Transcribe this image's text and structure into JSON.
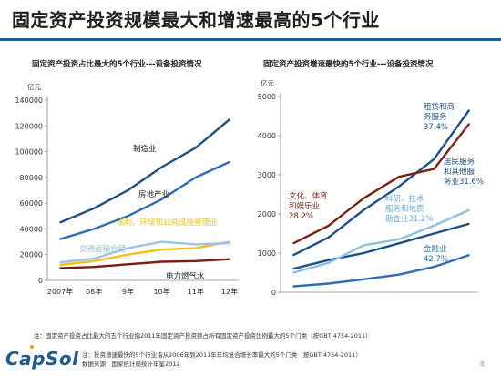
{
  "page": {
    "title": "固定资产投资规模最大和增速最高的5个行业",
    "note1": "注：固定资产投资占比最大的五个行业指2011年固定资产投资额占所有固定资产投资比例最大的5个门类（按GBT 4754-2011）",
    "note2_line1": "注：投资增速最快的5个行业指从2006年到2011年年均复合增长率最大的5个门类（按GBT 4754-2011）",
    "note2_line2": "数据来源：国家统计局统计年鉴2012",
    "logo": "CapSol",
    "page_number": "8"
  },
  "chart_data": [
    {
      "type": "line",
      "title": "固定资产投资占比最大的5个行业---设备投资情况",
      "ylabel": "亿元",
      "categories": [
        "2007年",
        "08年",
        "9年",
        "10年",
        "11年",
        "12年"
      ],
      "ylim": [
        0,
        140000
      ],
      "yticks": [
        0,
        20000,
        40000,
        60000,
        80000,
        100000,
        120000,
        140000
      ],
      "ytick_labels": [
        "0",
        "20000",
        "40000",
        "60000",
        "80000",
        "100000",
        "120000",
        "140000"
      ],
      "grid": false,
      "series": [
        {
          "name": "制造业",
          "color": "#1f4f86",
          "values": [
            45000,
            56000,
            70000,
            88000,
            103000,
            125000
          ],
          "label_color": "#222222"
        },
        {
          "name": "房地产业",
          "color": "#2e6db4",
          "values": [
            32000,
            40000,
            50000,
            63000,
            80000,
            92000
          ],
          "label_color": "#222222"
        },
        {
          "name": "水利、环境和公共设施管理业",
          "color": "#f2c21a",
          "values": [
            12000,
            15000,
            20000,
            24000,
            25000,
            30000
          ],
          "label_color": "#f2c21a"
        },
        {
          "name": "交通运输仓储",
          "color": "#9dc3e6",
          "values": [
            14000,
            17000,
            25000,
            30000,
            28000,
            29000
          ],
          "label_color": "#8fbfe2"
        },
        {
          "name": "电力燃气水",
          "color": "#7a1c12",
          "values": [
            9500,
            10500,
            12500,
            14500,
            15000,
            16500
          ],
          "label_color": "#222222"
        }
      ]
    },
    {
      "type": "line",
      "title": "固定资产投资增速最快的5个行业---设备投资情况",
      "ylabel": "亿元",
      "categories": [
        "2007年",
        "08年",
        "9年",
        "10年",
        "11年",
        "12年"
      ],
      "ylim": [
        0,
        5000
      ],
      "yticks": [
        0,
        1000,
        2000,
        3000,
        4000,
        5000
      ],
      "ytick_labels": [
        "0",
        "1000",
        "2000",
        "3000",
        "4000",
        "5000"
      ],
      "grid": false,
      "series": [
        {
          "name": "租赁和商务服务",
          "color": "#1f4f86",
          "values": [
            950,
            1400,
            2100,
            2700,
            3400,
            4650
          ],
          "label_color": "#1f4f86",
          "annotation": [
            "租赁和商",
            "务服务",
            "37.4%"
          ]
        },
        {
          "name": "文化、体育和娱乐业",
          "color": "#7a2416",
          "values": [
            1250,
            1700,
            2400,
            2950,
            3150,
            4300
          ],
          "label_color": "#7a2416",
          "annotation": [
            "文化、体育",
            "和娱乐业",
            "28.2%"
          ]
        },
        {
          "name": "居民服务和其他服务业",
          "color": "#1f4f86",
          "values": [
            600,
            820,
            1000,
            1250,
            1500,
            1750
          ],
          "label_color": "#1f4f86",
          "annotation": [
            "居民服务",
            "和其他服",
            "务业31.6%"
          ]
        },
        {
          "name": "科研、技术服务和地质勘查业",
          "color": "#8fbfe2",
          "values": [
            500,
            750,
            1200,
            1350,
            1700,
            2100
          ],
          "label_color": "#6fa9d6",
          "annotation": [
            "科研、技术",
            "服务和地质",
            "勘查业31.2%"
          ]
        },
        {
          "name": "金融业",
          "color": "#2e6db4",
          "values": [
            150,
            220,
            330,
            450,
            650,
            950
          ],
          "label_color": "#2e6db4",
          "annotation": [
            "金融业",
            "42.7%"
          ]
        }
      ]
    }
  ]
}
